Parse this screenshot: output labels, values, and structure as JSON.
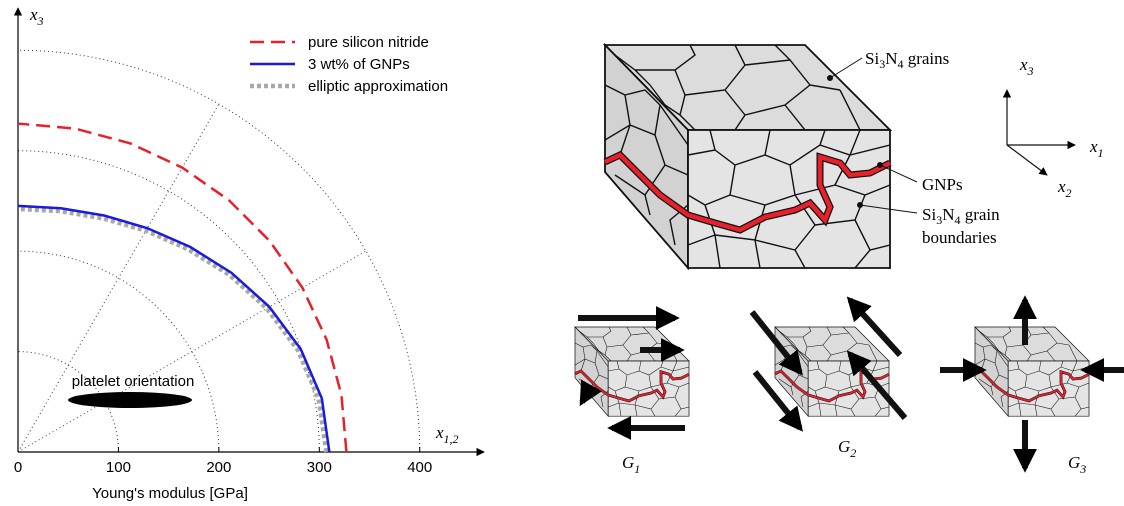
{
  "chart_data": {
    "type": "polar",
    "xlabel": "Young's modulus [GPa]",
    "x_axis_label": {
      "base": "x",
      "sub": "1,2"
    },
    "y_axis_label": {
      "base": "x",
      "sub": "3"
    },
    "annotation": "platelet orientation",
    "angles": [
      0,
      10,
      20,
      30,
      40,
      50,
      60,
      70,
      80,
      90
    ],
    "series": [
      {
        "name": "pure silicon nitride",
        "color": "#e8202a",
        "dash": "dashed",
        "values": [
          327,
          327,
          327,
          327,
          327,
          327,
          327,
          327,
          327,
          327
        ]
      },
      {
        "name": "3 wt% of GNPs",
        "color": "#1a1adc",
        "dash": "solid",
        "values": [
          310,
          307.2,
          299.6,
          289,
          277.5,
          266.6,
          257.4,
          250.6,
          246.4,
          245
        ]
      },
      {
        "name": "elliptic approximation",
        "color": "#a8a8a8",
        "dash": "dotted",
        "values": [
          307,
          304,
          296.5,
          286,
          274.5,
          263.5,
          254.5,
          247.5,
          243.5,
          242
        ]
      }
    ],
    "xlim": [
      0,
      460
    ],
    "ylim": [
      0,
      440
    ],
    "xticks": [
      0,
      100,
      200,
      300,
      400
    ],
    "angular_grid": [
      30,
      60
    ],
    "grid": true,
    "legend": "upper right"
  },
  "diagram": {
    "grains_label": [
      "Si",
      "3",
      "N",
      "4",
      " grains"
    ],
    "gnp_label": "GNPs",
    "boundary_label": [
      [
        "Si",
        "3",
        "N",
        "4",
        " grain"
      ],
      [
        "boundaries"
      ]
    ],
    "axes": [
      {
        "base": "x",
        "sub": "3"
      },
      {
        "base": "x",
        "sub": "1"
      },
      {
        "base": "x",
        "sub": "2"
      }
    ],
    "modes": [
      {
        "base": "G",
        "sub": "1"
      },
      {
        "base": "G",
        "sub": "2"
      },
      {
        "base": "G",
        "sub": "3"
      }
    ]
  }
}
